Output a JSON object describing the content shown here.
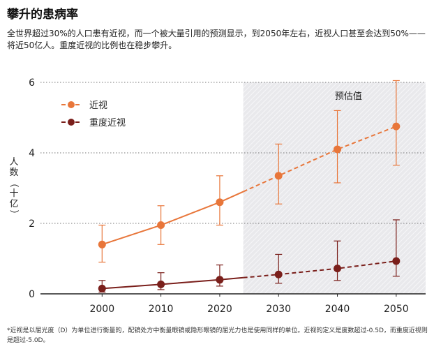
{
  "title": "攀升的患病率",
  "subtitle": "全世界超过30%的人口患有近视，而一个被大量引用的预测显示，到2050年左右，近视人口甚至会达到50%——将近50亿人。重度近视的比例也在稳步攀升。",
  "footnote": "*近视是以屈光度（D）为单位进行衡量的，配镜处方中衡量眼镜或隐形眼镜的屈光力也是使用同样的单位。近视的定义是度数超过-0.5D，而重度近视则是超过-5.0D。",
  "colors": {
    "myopia": "#e8763a",
    "high_myopia": "#7a1f1b",
    "forecast_bg": "#e8e8ea",
    "grid": "#777777"
  },
  "chart_data": {
    "type": "line",
    "x": [
      2000,
      2010,
      2020,
      2030,
      2040,
      2050
    ],
    "ylabel": "人数（十亿）",
    "xlim": [
      1990,
      2055
    ],
    "ylim": [
      0,
      6
    ],
    "yticks": [
      0,
      2,
      4,
      6
    ],
    "grid": "dotted horizontal",
    "legend": "top-left",
    "forecast_label": "预估值",
    "forecast_start": 2024,
    "series": [
      {
        "name": "近视",
        "color": "#e8763a",
        "values": [
          1.4,
          1.95,
          2.6,
          3.35,
          4.1,
          4.75
        ],
        "err_low": [
          0.9,
          1.4,
          1.95,
          2.55,
          3.15,
          3.65
        ],
        "err_high": [
          1.95,
          2.5,
          3.35,
          4.25,
          5.2,
          6.05
        ]
      },
      {
        "name": "重度近视",
        "color": "#7a1f1b",
        "values": [
          0.15,
          0.27,
          0.4,
          0.55,
          0.72,
          0.93
        ],
        "err_low": [
          0.05,
          0.12,
          0.22,
          0.3,
          0.38,
          0.5
        ],
        "err_high": [
          0.38,
          0.6,
          0.82,
          1.12,
          1.5,
          2.1
        ]
      }
    ]
  }
}
